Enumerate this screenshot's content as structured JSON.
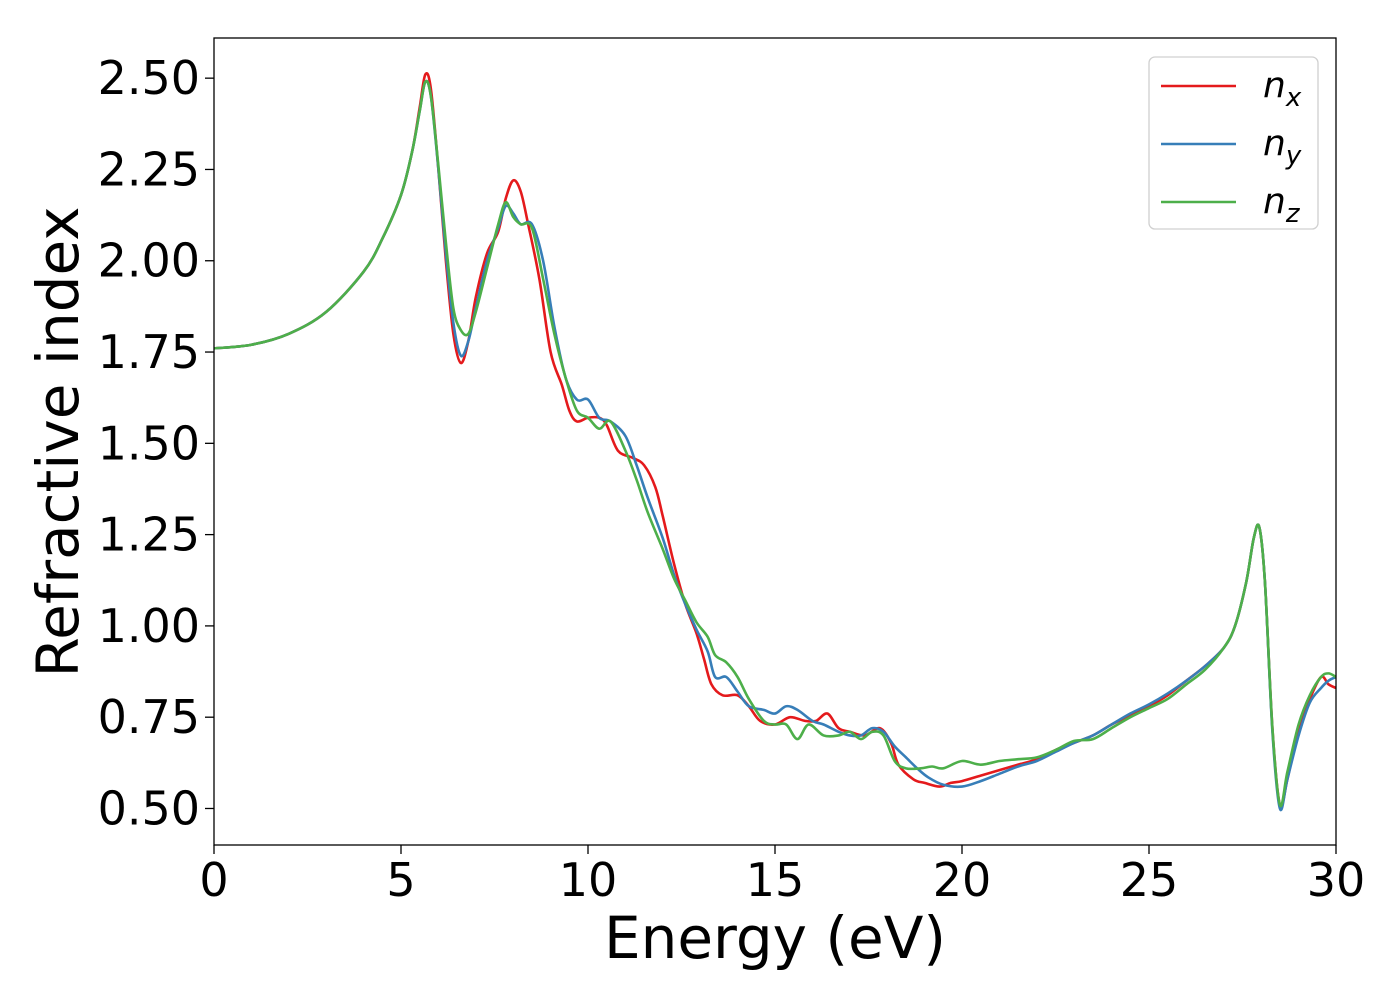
{
  "chart_data": {
    "type": "line",
    "title": "",
    "xlabel": "Energy (eV)",
    "ylabel": "Refractive index",
    "xlim": [
      0,
      30
    ],
    "ylim": [
      0.4,
      2.61
    ],
    "x_ticks": [
      0,
      5,
      10,
      15,
      20,
      25,
      30
    ],
    "x_tick_labels": [
      "0",
      "5",
      "10",
      "15",
      "20",
      "25",
      "30"
    ],
    "y_ticks": [
      0.5,
      0.75,
      1.0,
      1.25,
      1.5,
      1.75,
      2.0,
      2.25,
      2.5
    ],
    "y_tick_labels": [
      "0.50",
      "0.75",
      "1.00",
      "1.25",
      "1.50",
      "1.75",
      "2.00",
      "2.25",
      "2.50"
    ],
    "grid": false,
    "legend_position": "top-right",
    "series": [
      {
        "name": "n_x",
        "label_main": "n",
        "label_sub": "x",
        "color": "#e41a1c",
        "points": [
          [
            0,
            1.76
          ],
          [
            1,
            1.77
          ],
          [
            2,
            1.8
          ],
          [
            3,
            1.86
          ],
          [
            4,
            1.97
          ],
          [
            4.5,
            2.06
          ],
          [
            5,
            2.18
          ],
          [
            5.3,
            2.3
          ],
          [
            5.5,
            2.42
          ],
          [
            5.65,
            2.51
          ],
          [
            5.8,
            2.47
          ],
          [
            6.0,
            2.25
          ],
          [
            6.2,
            2.0
          ],
          [
            6.4,
            1.8
          ],
          [
            6.6,
            1.72
          ],
          [
            6.8,
            1.78
          ],
          [
            7.0,
            1.9
          ],
          [
            7.3,
            2.02
          ],
          [
            7.6,
            2.08
          ],
          [
            7.8,
            2.17
          ],
          [
            8.0,
            2.22
          ],
          [
            8.2,
            2.19
          ],
          [
            8.4,
            2.1
          ],
          [
            8.7,
            1.95
          ],
          [
            9.0,
            1.75
          ],
          [
            9.3,
            1.66
          ],
          [
            9.5,
            1.59
          ],
          [
            9.7,
            1.56
          ],
          [
            10.0,
            1.57
          ],
          [
            10.3,
            1.57
          ],
          [
            10.5,
            1.55
          ],
          [
            10.8,
            1.48
          ],
          [
            11.2,
            1.46
          ],
          [
            11.5,
            1.44
          ],
          [
            11.8,
            1.38
          ],
          [
            12.0,
            1.3
          ],
          [
            12.3,
            1.17
          ],
          [
            12.6,
            1.06
          ],
          [
            12.9,
            0.98
          ],
          [
            13.1,
            0.91
          ],
          [
            13.3,
            0.84
          ],
          [
            13.6,
            0.81
          ],
          [
            14.0,
            0.81
          ],
          [
            14.3,
            0.78
          ],
          [
            14.6,
            0.74
          ],
          [
            15.0,
            0.73
          ],
          [
            15.4,
            0.75
          ],
          [
            15.8,
            0.74
          ],
          [
            16.1,
            0.74
          ],
          [
            16.4,
            0.76
          ],
          [
            16.7,
            0.72
          ],
          [
            17.0,
            0.71
          ],
          [
            17.4,
            0.7
          ],
          [
            17.8,
            0.72
          ],
          [
            18.1,
            0.68
          ],
          [
            18.3,
            0.62
          ],
          [
            18.7,
            0.58
          ],
          [
            19.0,
            0.57
          ],
          [
            19.4,
            0.56
          ],
          [
            19.7,
            0.57
          ],
          [
            20.0,
            0.575
          ],
          [
            20.5,
            0.59
          ],
          [
            21.0,
            0.605
          ],
          [
            21.5,
            0.62
          ],
          [
            22.0,
            0.635
          ],
          [
            22.5,
            0.66
          ],
          [
            23.0,
            0.68
          ],
          [
            23.5,
            0.7
          ],
          [
            24.0,
            0.73
          ],
          [
            24.5,
            0.755
          ],
          [
            25.0,
            0.78
          ],
          [
            25.5,
            0.81
          ],
          [
            26.0,
            0.85
          ],
          [
            26.5,
            0.89
          ],
          [
            27.0,
            0.94
          ],
          [
            27.3,
            1.0
          ],
          [
            27.6,
            1.12
          ],
          [
            27.8,
            1.24
          ],
          [
            27.95,
            1.27
          ],
          [
            28.1,
            1.12
          ],
          [
            28.3,
            0.72
          ],
          [
            28.5,
            0.51
          ],
          [
            28.7,
            0.58
          ],
          [
            29.0,
            0.72
          ],
          [
            29.3,
            0.8
          ],
          [
            29.6,
            0.86
          ],
          [
            29.8,
            0.84
          ],
          [
            30.0,
            0.83
          ]
        ]
      },
      {
        "name": "n_y",
        "label_main": "n",
        "label_sub": "y",
        "color": "#377eb8",
        "points": [
          [
            0,
            1.76
          ],
          [
            1,
            1.77
          ],
          [
            2,
            1.8
          ],
          [
            3,
            1.86
          ],
          [
            4,
            1.97
          ],
          [
            4.5,
            2.06
          ],
          [
            5,
            2.18
          ],
          [
            5.3,
            2.3
          ],
          [
            5.5,
            2.41
          ],
          [
            5.65,
            2.49
          ],
          [
            5.8,
            2.45
          ],
          [
            6.0,
            2.25
          ],
          [
            6.2,
            2.02
          ],
          [
            6.4,
            1.83
          ],
          [
            6.6,
            1.74
          ],
          [
            6.8,
            1.78
          ],
          [
            7.0,
            1.87
          ],
          [
            7.3,
            2.0
          ],
          [
            7.6,
            2.09
          ],
          [
            7.8,
            2.15
          ],
          [
            8.0,
            2.13
          ],
          [
            8.2,
            2.1
          ],
          [
            8.5,
            2.1
          ],
          [
            8.8,
            2.0
          ],
          [
            9.1,
            1.82
          ],
          [
            9.4,
            1.68
          ],
          [
            9.7,
            1.62
          ],
          [
            10.0,
            1.62
          ],
          [
            10.3,
            1.57
          ],
          [
            10.6,
            1.56
          ],
          [
            11.0,
            1.52
          ],
          [
            11.3,
            1.44
          ],
          [
            11.6,
            1.35
          ],
          [
            12.0,
            1.24
          ],
          [
            12.3,
            1.14
          ],
          [
            12.6,
            1.06
          ],
          [
            12.9,
            0.99
          ],
          [
            13.2,
            0.93
          ],
          [
            13.4,
            0.86
          ],
          [
            13.7,
            0.86
          ],
          [
            14.0,
            0.82
          ],
          [
            14.3,
            0.78
          ],
          [
            14.7,
            0.77
          ],
          [
            15.0,
            0.76
          ],
          [
            15.3,
            0.78
          ],
          [
            15.6,
            0.77
          ],
          [
            16.0,
            0.74
          ],
          [
            16.3,
            0.73
          ],
          [
            16.7,
            0.71
          ],
          [
            17.0,
            0.7
          ],
          [
            17.3,
            0.7
          ],
          [
            17.6,
            0.72
          ],
          [
            17.9,
            0.71
          ],
          [
            18.2,
            0.67
          ],
          [
            18.5,
            0.64
          ],
          [
            18.8,
            0.61
          ],
          [
            19.1,
            0.585
          ],
          [
            19.5,
            0.565
          ],
          [
            20.0,
            0.56
          ],
          [
            20.5,
            0.575
          ],
          [
            21.0,
            0.595
          ],
          [
            21.5,
            0.615
          ],
          [
            22.0,
            0.63
          ],
          [
            22.5,
            0.655
          ],
          [
            23.0,
            0.68
          ],
          [
            23.5,
            0.7
          ],
          [
            24.0,
            0.73
          ],
          [
            24.5,
            0.76
          ],
          [
            25.0,
            0.785
          ],
          [
            25.5,
            0.815
          ],
          [
            26.0,
            0.85
          ],
          [
            26.5,
            0.89
          ],
          [
            27.0,
            0.94
          ],
          [
            27.3,
            1.0
          ],
          [
            27.6,
            1.12
          ],
          [
            27.8,
            1.24
          ],
          [
            27.95,
            1.27
          ],
          [
            28.1,
            1.12
          ],
          [
            28.3,
            0.71
          ],
          [
            28.5,
            0.5
          ],
          [
            28.7,
            0.58
          ],
          [
            29.0,
            0.7
          ],
          [
            29.3,
            0.79
          ],
          [
            29.6,
            0.83
          ],
          [
            29.8,
            0.85
          ],
          [
            30.0,
            0.86
          ]
        ]
      },
      {
        "name": "n_z",
        "label_main": "n",
        "label_sub": "z",
        "color": "#4daf4a",
        "points": [
          [
            0,
            1.76
          ],
          [
            1,
            1.77
          ],
          [
            2,
            1.8
          ],
          [
            3,
            1.86
          ],
          [
            4,
            1.97
          ],
          [
            4.5,
            2.06
          ],
          [
            5,
            2.18
          ],
          [
            5.3,
            2.3
          ],
          [
            5.5,
            2.41
          ],
          [
            5.65,
            2.49
          ],
          [
            5.8,
            2.45
          ],
          [
            6.0,
            2.26
          ],
          [
            6.2,
            2.05
          ],
          [
            6.4,
            1.87
          ],
          [
            6.6,
            1.81
          ],
          [
            6.8,
            1.8
          ],
          [
            7.0,
            1.86
          ],
          [
            7.3,
            1.98
          ],
          [
            7.6,
            2.1
          ],
          [
            7.8,
            2.16
          ],
          [
            8.0,
            2.12
          ],
          [
            8.2,
            2.1
          ],
          [
            8.5,
            2.09
          ],
          [
            8.8,
            1.95
          ],
          [
            9.1,
            1.8
          ],
          [
            9.4,
            1.68
          ],
          [
            9.7,
            1.59
          ],
          [
            10.0,
            1.57
          ],
          [
            10.3,
            1.54
          ],
          [
            10.6,
            1.56
          ],
          [
            11.0,
            1.48
          ],
          [
            11.3,
            1.4
          ],
          [
            11.6,
            1.31
          ],
          [
            12.0,
            1.21
          ],
          [
            12.3,
            1.13
          ],
          [
            12.6,
            1.07
          ],
          [
            12.9,
            1.01
          ],
          [
            13.2,
            0.97
          ],
          [
            13.4,
            0.92
          ],
          [
            13.7,
            0.9
          ],
          [
            14.0,
            0.86
          ],
          [
            14.3,
            0.8
          ],
          [
            14.7,
            0.74
          ],
          [
            15.0,
            0.73
          ],
          [
            15.3,
            0.73
          ],
          [
            15.6,
            0.69
          ],
          [
            15.9,
            0.73
          ],
          [
            16.3,
            0.7
          ],
          [
            16.7,
            0.7
          ],
          [
            17.0,
            0.71
          ],
          [
            17.3,
            0.69
          ],
          [
            17.6,
            0.71
          ],
          [
            17.9,
            0.7
          ],
          [
            18.2,
            0.63
          ],
          [
            18.5,
            0.61
          ],
          [
            18.9,
            0.61
          ],
          [
            19.2,
            0.615
          ],
          [
            19.5,
            0.61
          ],
          [
            20.0,
            0.63
          ],
          [
            20.5,
            0.62
          ],
          [
            21.0,
            0.63
          ],
          [
            21.5,
            0.635
          ],
          [
            22.0,
            0.64
          ],
          [
            22.5,
            0.66
          ],
          [
            23.0,
            0.685
          ],
          [
            23.5,
            0.69
          ],
          [
            24.0,
            0.72
          ],
          [
            24.5,
            0.75
          ],
          [
            25.0,
            0.775
          ],
          [
            25.5,
            0.8
          ],
          [
            26.0,
            0.84
          ],
          [
            26.5,
            0.88
          ],
          [
            27.0,
            0.94
          ],
          [
            27.3,
            1.0
          ],
          [
            27.6,
            1.12
          ],
          [
            27.8,
            1.24
          ],
          [
            27.95,
            1.27
          ],
          [
            28.1,
            1.12
          ],
          [
            28.3,
            0.72
          ],
          [
            28.5,
            0.51
          ],
          [
            28.7,
            0.6
          ],
          [
            29.0,
            0.73
          ],
          [
            29.3,
            0.81
          ],
          [
            29.6,
            0.86
          ],
          [
            29.8,
            0.87
          ],
          [
            30.0,
            0.86
          ]
        ]
      }
    ]
  }
}
